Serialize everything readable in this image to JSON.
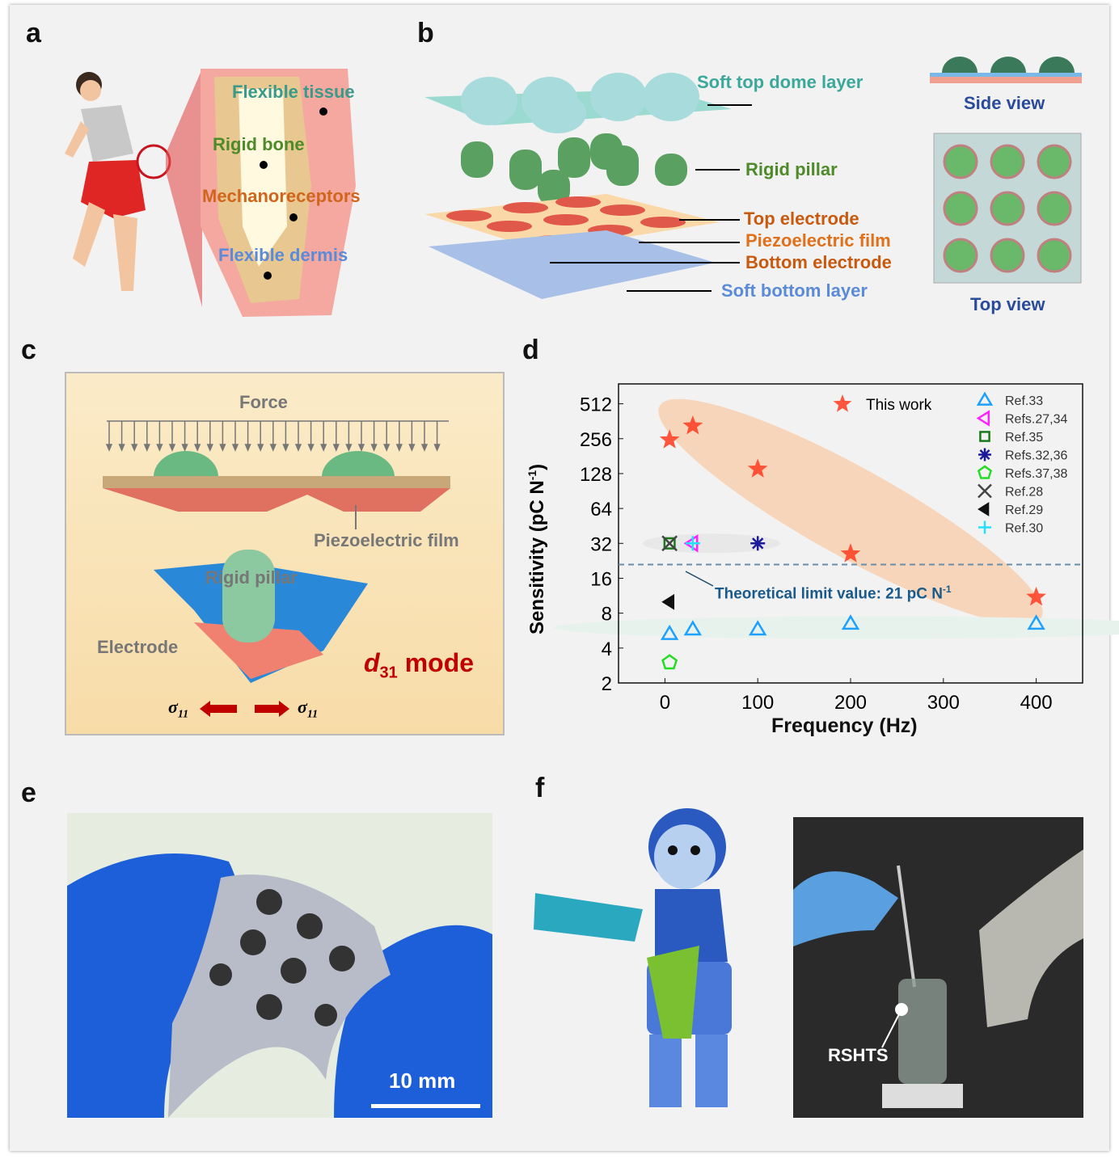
{
  "panels": {
    "a": "a",
    "b": "b",
    "c": "c",
    "d": "d",
    "e": "e",
    "f": "f"
  },
  "panel_a": {
    "labels": [
      "Flexible tissue",
      "Rigid bone",
      "Mechanoreceptors",
      "Flexible dermis"
    ]
  },
  "panel_b": {
    "labels": [
      "Soft top dome layer",
      "Rigid pillar",
      "Top electrode",
      "Piezoelectric film",
      "Bottom electrode",
      "Soft bottom layer"
    ],
    "side_view": "Side view",
    "top_view": "Top view"
  },
  "panel_c": {
    "force": "Force",
    "piezo_film": "Piezoelectric film",
    "rigid_pillar": "Rigid pillar",
    "electrode": "Electrode",
    "mode": "d",
    "mode_sub": "31",
    "mode_suffix": " mode",
    "sigma": "σ",
    "sigma_sub": "11"
  },
  "panel_e": {
    "scale_bar": "10 mm"
  },
  "panel_f": {
    "label": "RSHTS"
  },
  "chart_data": {
    "type": "scatter",
    "xlabel": "Frequency (Hz)",
    "ylabel": "Sensitivity (pC N",
    "ylabel_sup": "-1",
    "ylabel_end": ")",
    "xlim": [
      -50,
      450
    ],
    "ylim": [
      2,
      760
    ],
    "yscale": "log2",
    "xticks": [
      0,
      100,
      200,
      300,
      400
    ],
    "yticks": [
      2,
      4,
      8,
      16,
      32,
      64,
      128,
      256,
      512
    ],
    "legend_placement": "top-right",
    "annotation": {
      "text": "Theoretical limit value: 21 pC N",
      "sup": "-1",
      "y": 21
    },
    "series": [
      {
        "name": "This work",
        "marker": "star",
        "color": "#ff3b1f",
        "points": [
          [
            5,
            250
          ],
          [
            30,
            330
          ],
          [
            100,
            140
          ],
          [
            200,
            26
          ],
          [
            400,
            11
          ]
        ]
      },
      {
        "name": "Ref.33",
        "marker": "triangle-up",
        "color": "#1ea0ff",
        "points": [
          [
            5,
            5.3
          ],
          [
            30,
            5.8
          ],
          [
            100,
            5.8
          ],
          [
            200,
            6.5
          ],
          [
            400,
            6.5
          ]
        ]
      },
      {
        "name": "Refs.27,34",
        "marker": "triangle-left",
        "color": "#ff22ff",
        "points": [
          [
            30,
            32
          ]
        ]
      },
      {
        "name": "Ref.35",
        "marker": "square",
        "color": "#1a7a1a",
        "points": [
          [
            5,
            32
          ]
        ]
      },
      {
        "name": "Refs.32,36",
        "marker": "asterisk",
        "color": "#1a1a9a",
        "points": [
          [
            100,
            32
          ]
        ]
      },
      {
        "name": "Refs.37,38",
        "marker": "pentagon",
        "color": "#22dd22",
        "points": [
          [
            5,
            3
          ]
        ]
      },
      {
        "name": "Ref.28",
        "marker": "x",
        "color": "#444444",
        "points": [
          [
            5,
            32
          ]
        ]
      },
      {
        "name": "Ref.29",
        "marker": "triangle-left-filled",
        "color": "#111111",
        "points": [
          [
            5,
            10
          ]
        ]
      },
      {
        "name": "Ref.30",
        "marker": "plus",
        "color": "#22e0ff",
        "points": [
          [
            30,
            32
          ]
        ]
      }
    ]
  }
}
